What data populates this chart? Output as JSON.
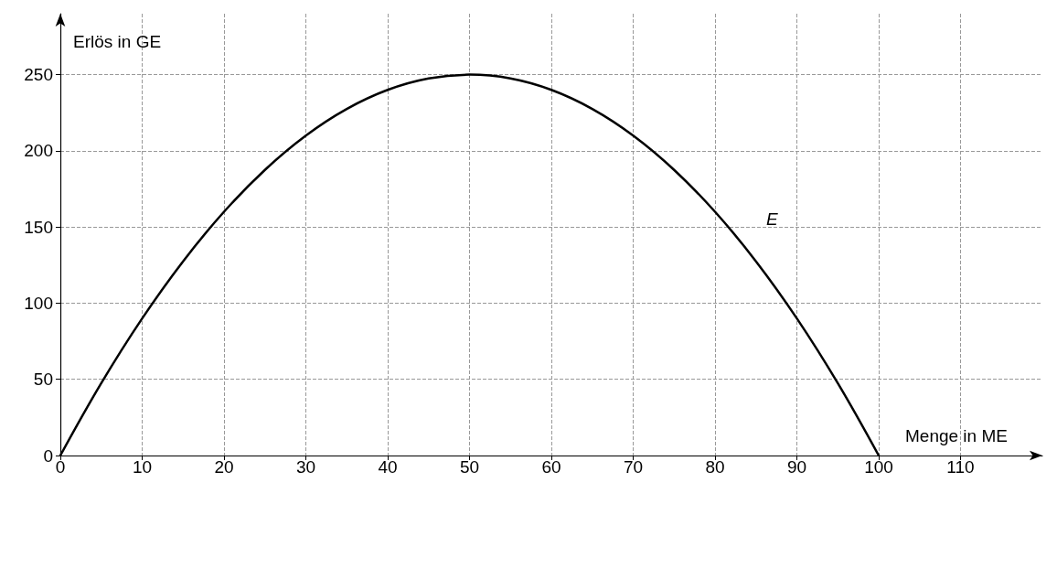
{
  "chart_data": {
    "type": "line",
    "xlabel": "Menge in ME",
    "ylabel": "Erlös in GE",
    "x": [
      0,
      5,
      10,
      15,
      20,
      25,
      30,
      35,
      40,
      45,
      50,
      55,
      60,
      65,
      70,
      75,
      80,
      85,
      90,
      95,
      100
    ],
    "series": [
      {
        "color": "#000000",
        "values": [
          0,
          47.5,
          90,
          127.5,
          160,
          187.5,
          210,
          227.5,
          240,
          247.5,
          250,
          247.5,
          240,
          227.5,
          210,
          187.5,
          160,
          127.5,
          90,
          47.5,
          0
        ]
      }
    ],
    "xlim": [
      0,
      120
    ],
    "xticks": [
      0,
      10,
      20,
      30,
      40,
      50,
      60,
      70,
      80,
      90,
      100,
      110
    ],
    "ylim": [
      0,
      290
    ],
    "yticks": [
      0,
      50,
      100,
      150,
      200,
      250
    ],
    "annotations": [
      "E"
    ],
    "grid": true,
    "marker": "none",
    "line_style": "solid"
  }
}
